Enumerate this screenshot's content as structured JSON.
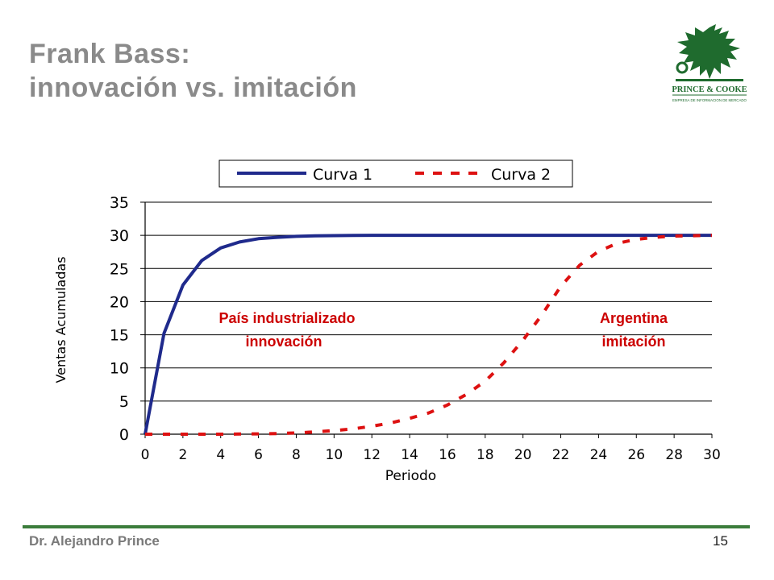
{
  "slide": {
    "title_line1": "Frank Bass:",
    "title_line2": "innovación vs. imitación",
    "author": "Dr. Alejandro Prince",
    "page_number": "15",
    "logo_text": "PRINCE & COOKE",
    "logo_subtext": "EMPRESA DE INFORMACION DE MERCADO",
    "colors": {
      "title": "#8a8a8a",
      "brand_green": "#1f6b2e",
      "footer_line": "#3b7d3b",
      "annotation": "#cc0000"
    }
  },
  "chart_data": {
    "type": "line",
    "xlabel": "Periodo",
    "ylabel": "Ventas Acumuladas",
    "xlim": [
      0,
      30
    ],
    "ylim": [
      0,
      35
    ],
    "xticks": [
      0,
      2,
      4,
      6,
      8,
      10,
      12,
      14,
      16,
      18,
      20,
      22,
      24,
      26,
      28,
      30
    ],
    "yticks": [
      0,
      5,
      10,
      15,
      20,
      25,
      30,
      35
    ],
    "grid": "horizontal",
    "legend_position": "top",
    "x": [
      0,
      1,
      2,
      3,
      4,
      5,
      6,
      7,
      8,
      9,
      10,
      11,
      12,
      13,
      14,
      15,
      16,
      17,
      18,
      19,
      20,
      21,
      22,
      23,
      24,
      25,
      26,
      27,
      28,
      29,
      30
    ],
    "series": [
      {
        "name": "Curva 1",
        "color": "#1f2a8c",
        "style": "solid",
        "values": [
          0,
          15.2,
          22.5,
          26.2,
          28.1,
          29.0,
          29.5,
          29.7,
          29.85,
          29.92,
          29.96,
          29.98,
          30,
          30,
          30,
          30,
          30,
          30,
          30,
          30,
          30,
          30,
          30,
          30,
          30,
          30,
          30,
          30,
          30,
          30,
          30
        ]
      },
      {
        "name": "Curva 2",
        "color": "#dd1111",
        "style": "dashed",
        "values": [
          0,
          0,
          0,
          0,
          0,
          0.02,
          0.05,
          0.1,
          0.2,
          0.35,
          0.55,
          0.8,
          1.2,
          1.7,
          2.4,
          3.2,
          4.4,
          6.0,
          8.0,
          10.8,
          14.2,
          18.0,
          22.3,
          25.5,
          27.6,
          28.8,
          29.4,
          29.7,
          29.9,
          29.95,
          30
        ]
      }
    ],
    "annotations": [
      {
        "id": "left",
        "line1": "País industrializado",
        "line2": "innovación"
      },
      {
        "id": "right",
        "line1": "Argentina",
        "line2": "imitación"
      }
    ]
  }
}
